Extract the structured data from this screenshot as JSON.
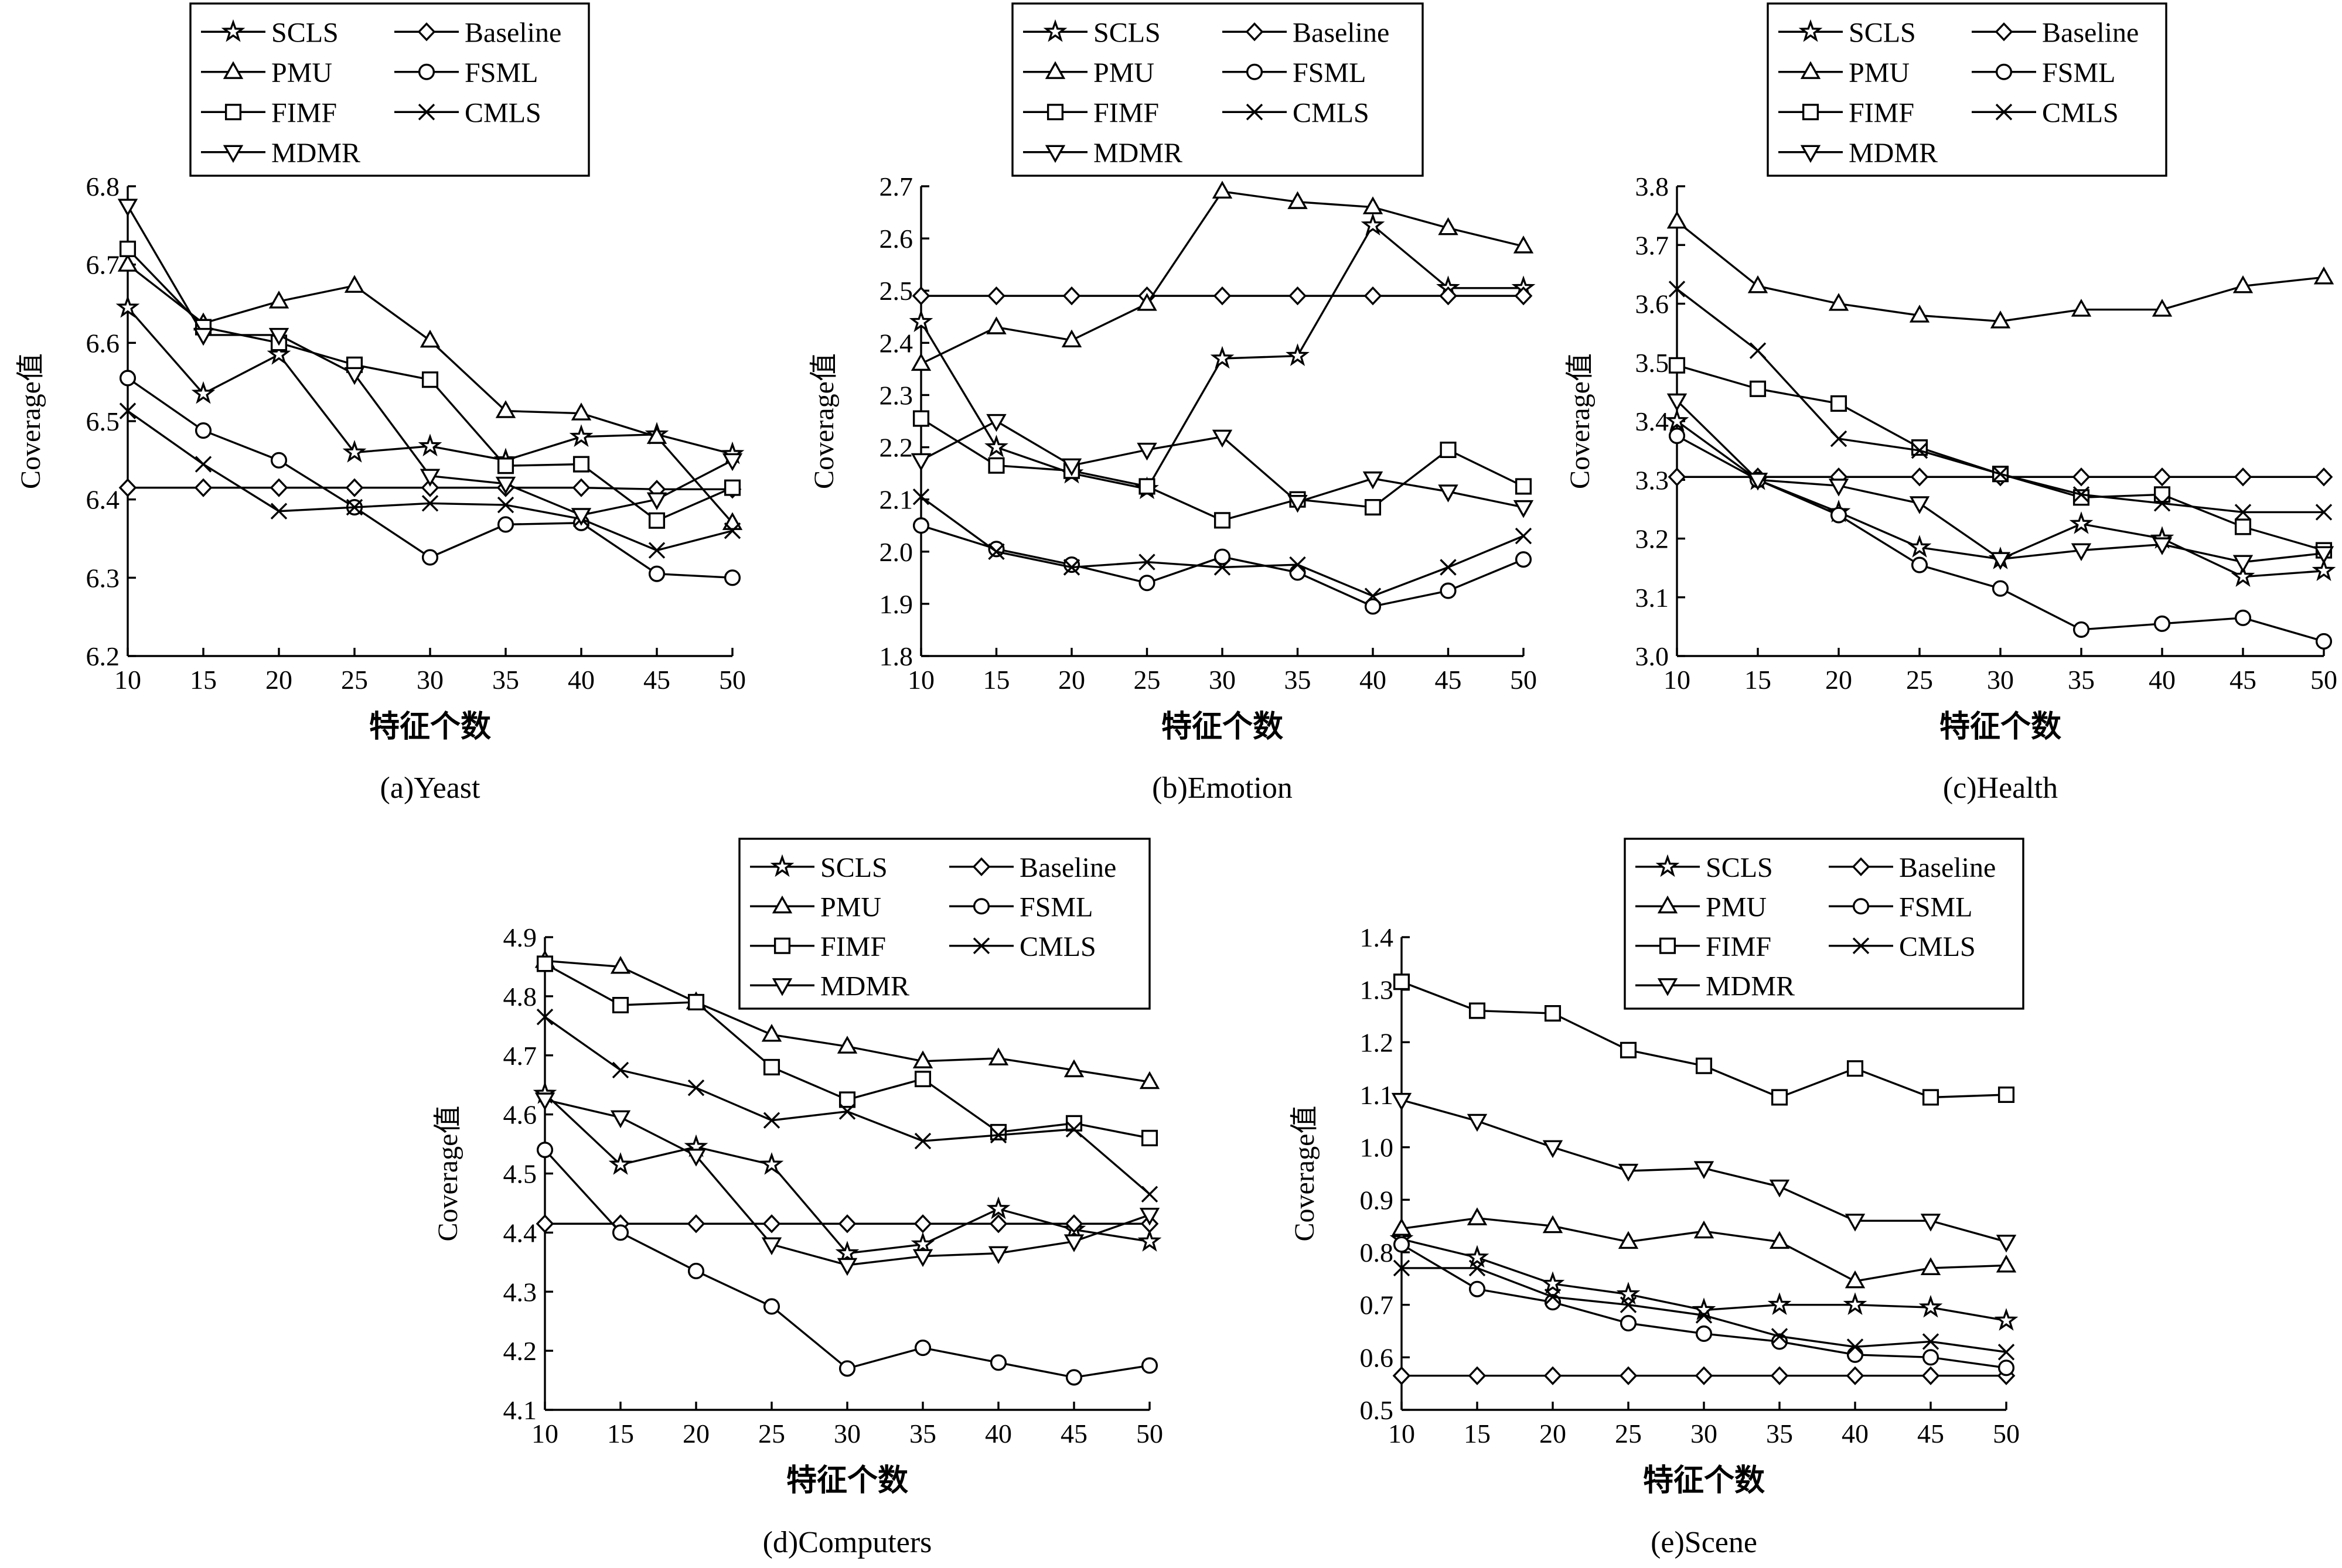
{
  "chart_data": [
    {
      "type": "line",
      "caption": "(a)Yeast",
      "xlabel": "特征个数",
      "ylabel": "Coverage值",
      "x": [
        10,
        15,
        20,
        25,
        30,
        35,
        40,
        45,
        50
      ],
      "ylim": [
        6.2,
        6.8
      ],
      "yticks": [
        "6.2",
        "6.3",
        "6.4",
        "6.5",
        "6.6",
        "6.7",
        "6.8"
      ],
      "legend_position": "top-left",
      "series": [
        {
          "name": "SCLS",
          "marker": "star",
          "values": [
            6.645,
            6.535,
            6.585,
            6.46,
            6.468,
            6.45,
            6.48,
            6.483,
            6.458
          ]
        },
        {
          "name": "Baseline",
          "marker": "diamond",
          "values": [
            6.415,
            6.415,
            6.415,
            6.415,
            6.415,
            6.415,
            6.415,
            6.413,
            6.413
          ]
        },
        {
          "name": "PMU",
          "marker": "triangle-up",
          "values": [
            6.7,
            6.625,
            6.653,
            6.673,
            6.603,
            6.513,
            6.51,
            6.48,
            6.37
          ]
        },
        {
          "name": "FSML",
          "marker": "circle",
          "values": [
            6.555,
            6.488,
            6.45,
            6.39,
            6.326,
            6.368,
            6.37,
            6.305,
            6.3
          ]
        },
        {
          "name": "FIMF",
          "marker": "square",
          "values": [
            6.72,
            6.62,
            6.6,
            6.572,
            6.553,
            6.443,
            6.445,
            6.373,
            6.415
          ]
        },
        {
          "name": "CMLS",
          "marker": "cross",
          "values": [
            6.513,
            6.445,
            6.385,
            6.39,
            6.395,
            6.393,
            6.375,
            6.335,
            6.36
          ]
        },
        {
          "name": "MDMR",
          "marker": "triangle-down",
          "values": [
            6.775,
            6.61,
            6.61,
            6.56,
            6.43,
            6.42,
            6.38,
            6.4,
            6.45
          ]
        }
      ]
    },
    {
      "type": "line",
      "caption": "(b)Emotion",
      "xlabel": "特征个数",
      "ylabel": "Coverage值",
      "x": [
        10,
        15,
        20,
        25,
        30,
        35,
        40,
        45,
        50
      ],
      "ylim": [
        1.8,
        2.7
      ],
      "yticks": [
        "1.8",
        "1.9",
        "2.0",
        "2.1",
        "2.2",
        "2.3",
        "2.4",
        "2.5",
        "2.6",
        "2.7"
      ],
      "legend_position": "top-center",
      "series": [
        {
          "name": "SCLS",
          "marker": "star",
          "values": [
            2.44,
            2.2,
            2.15,
            2.12,
            2.37,
            2.375,
            2.625,
            2.505,
            2.505
          ]
        },
        {
          "name": "Baseline",
          "marker": "diamond",
          "values": [
            2.49,
            2.49,
            2.49,
            2.49,
            2.49,
            2.49,
            2.49,
            2.49,
            2.49
          ]
        },
        {
          "name": "PMU",
          "marker": "triangle-up",
          "values": [
            2.36,
            2.43,
            2.405,
            2.475,
            2.69,
            2.67,
            2.66,
            2.62,
            2.585
          ]
        },
        {
          "name": "FSML",
          "marker": "circle",
          "values": [
            2.05,
            2.005,
            1.975,
            1.94,
            1.99,
            1.96,
            1.895,
            1.925,
            1.985
          ]
        },
        {
          "name": "FIMF",
          "marker": "square",
          "values": [
            2.255,
            2.165,
            2.155,
            2.125,
            2.06,
            2.1,
            2.085,
            2.195,
            2.125
          ]
        },
        {
          "name": "CMLS",
          "marker": "cross",
          "values": [
            2.105,
            2.0,
            1.97,
            1.98,
            1.97,
            1.975,
            1.915,
            1.97,
            2.03
          ]
        },
        {
          "name": "MDMR",
          "marker": "triangle-down",
          "values": [
            2.175,
            2.25,
            2.165,
            2.195,
            2.22,
            2.095,
            2.14,
            2.115,
            2.085
          ]
        }
      ]
    },
    {
      "type": "line",
      "caption": "(c)Health",
      "xlabel": "特征个数",
      "ylabel": "Coverage值",
      "x": [
        10,
        15,
        20,
        25,
        30,
        35,
        40,
        45,
        50
      ],
      "ylim": [
        3.0,
        3.8
      ],
      "yticks": [
        "3.0",
        "3.1",
        "3.2",
        "3.3",
        "3.4",
        "3.5",
        "3.6",
        "3.7",
        "3.8"
      ],
      "legend_position": "top-center",
      "series": [
        {
          "name": "SCLS",
          "marker": "star",
          "values": [
            3.4,
            3.3,
            3.245,
            3.185,
            3.165,
            3.225,
            3.2,
            3.135,
            3.145
          ]
        },
        {
          "name": "Baseline",
          "marker": "diamond",
          "values": [
            3.305,
            3.305,
            3.305,
            3.305,
            3.305,
            3.305,
            3.305,
            3.305,
            3.305
          ]
        },
        {
          "name": "PMU",
          "marker": "triangle-up",
          "values": [
            3.74,
            3.63,
            3.6,
            3.58,
            3.57,
            3.59,
            3.59,
            3.63,
            3.645
          ]
        },
        {
          "name": "FSML",
          "marker": "circle",
          "values": [
            3.375,
            3.3,
            3.24,
            3.155,
            3.115,
            3.045,
            3.055,
            3.065,
            3.025
          ]
        },
        {
          "name": "FIMF",
          "marker": "square",
          "values": [
            3.495,
            3.455,
            3.43,
            3.355,
            3.31,
            3.27,
            3.275,
            3.22,
            3.18
          ]
        },
        {
          "name": "CMLS",
          "marker": "cross",
          "values": [
            3.625,
            3.52,
            3.37,
            3.35,
            3.31,
            3.275,
            3.26,
            3.245,
            3.245
          ]
        },
        {
          "name": "MDMR",
          "marker": "triangle-down",
          "values": [
            3.435,
            3.3,
            3.29,
            3.26,
            3.165,
            3.18,
            3.19,
            3.16,
            3.175
          ]
        }
      ]
    },
    {
      "type": "line",
      "caption": "(d)Computers",
      "xlabel": "特征个数",
      "ylabel": "Coverage值",
      "x": [
        10,
        15,
        20,
        25,
        30,
        35,
        40,
        45,
        50
      ],
      "ylim": [
        4.1,
        4.9
      ],
      "yticks": [
        "4.1",
        "4.2",
        "4.3",
        "4.4",
        "4.5",
        "4.6",
        "4.7",
        "4.8",
        "4.9"
      ],
      "legend_position": "top-right",
      "series": [
        {
          "name": "SCLS",
          "marker": "star",
          "values": [
            4.635,
            4.515,
            4.545,
            4.515,
            4.365,
            4.38,
            4.44,
            4.405,
            4.385
          ]
        },
        {
          "name": "Baseline",
          "marker": "diamond",
          "values": [
            4.415,
            4.415,
            4.415,
            4.415,
            4.415,
            4.415,
            4.415,
            4.415,
            4.415
          ]
        },
        {
          "name": "PMU",
          "marker": "triangle-up",
          "values": [
            4.86,
            4.85,
            4.79,
            4.735,
            4.715,
            4.69,
            4.695,
            4.675,
            4.655
          ]
        },
        {
          "name": "FSML",
          "marker": "circle",
          "values": [
            4.54,
            4.4,
            4.335,
            4.275,
            4.17,
            4.205,
            4.18,
            4.155,
            4.175
          ]
        },
        {
          "name": "FIMF",
          "marker": "square",
          "values": [
            4.855,
            4.785,
            4.79,
            4.68,
            4.625,
            4.66,
            4.57,
            4.585,
            4.56
          ]
        },
        {
          "name": "CMLS",
          "marker": "cross",
          "values": [
            4.765,
            4.675,
            4.645,
            4.59,
            4.605,
            4.555,
            4.565,
            4.575,
            4.465
          ]
        },
        {
          "name": "MDMR",
          "marker": "triangle-down",
          "values": [
            4.625,
            4.595,
            4.53,
            4.38,
            4.345,
            4.36,
            4.365,
            4.385,
            4.43
          ]
        }
      ]
    },
    {
      "type": "line",
      "caption": "(e)Scene",
      "xlabel": "特征个数",
      "ylabel": "Coverage值",
      "x": [
        10,
        15,
        20,
        25,
        30,
        35,
        40,
        45,
        50
      ],
      "ylim": [
        0.5,
        1.4
      ],
      "yticks": [
        "0.5",
        "0.6",
        "0.7",
        "0.8",
        "0.9",
        "1.0",
        "1.1",
        "1.2",
        "1.3",
        "1.4"
      ],
      "legend_position": "top-center",
      "series": [
        {
          "name": "SCLS",
          "marker": "star",
          "values": [
            0.825,
            0.79,
            0.74,
            0.72,
            0.69,
            0.7,
            0.7,
            0.695,
            0.67
          ]
        },
        {
          "name": "Baseline",
          "marker": "diamond",
          "values": [
            0.565,
            0.565,
            0.565,
            0.565,
            0.565,
            0.565,
            0.565,
            0.565,
            0.565
          ]
        },
        {
          "name": "PMU",
          "marker": "triangle-up",
          "values": [
            0.845,
            0.865,
            0.85,
            0.82,
            0.84,
            0.82,
            0.745,
            0.77,
            0.775
          ]
        },
        {
          "name": "FSML",
          "marker": "circle",
          "values": [
            0.815,
            0.73,
            0.705,
            0.665,
            0.645,
            0.63,
            0.605,
            0.6,
            0.58
          ]
        },
        {
          "name": "FIMF",
          "marker": "square",
          "values": [
            1.315,
            1.26,
            1.255,
            1.185,
            1.155,
            1.095,
            1.15,
            1.095,
            1.1
          ]
        },
        {
          "name": "CMLS",
          "marker": "cross",
          "values": [
            0.77,
            0.77,
            0.715,
            0.7,
            0.68,
            0.64,
            0.62,
            0.63,
            0.61
          ]
        },
        {
          "name": "MDMR",
          "marker": "triangle-down",
          "values": [
            1.09,
            1.05,
            1.0,
            0.955,
            0.96,
            0.925,
            0.86,
            0.86,
            0.82
          ]
        }
      ]
    }
  ]
}
